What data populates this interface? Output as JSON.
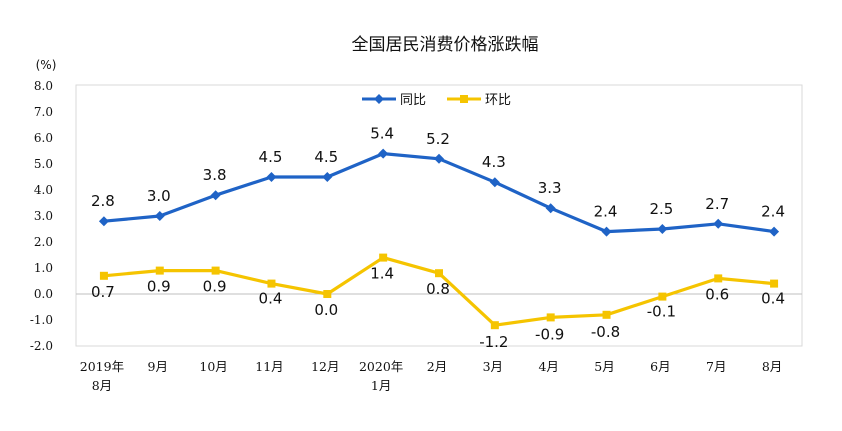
{
  "chart_data": {
    "type": "line",
    "title": "全国居民消费价格涨跌幅",
    "unit": "(%)",
    "categories": [
      [
        "2019年",
        "8月"
      ],
      [
        "9月"
      ],
      [
        "10月"
      ],
      [
        "11月"
      ],
      [
        "12月"
      ],
      [
        "2020年",
        "1月"
      ],
      [
        "2月"
      ],
      [
        "3月"
      ],
      [
        "4月"
      ],
      [
        "5月"
      ],
      [
        "6月"
      ],
      [
        "7月"
      ],
      [
        "8月"
      ]
    ],
    "y_ticks": [
      "8.0",
      "7.0",
      "6.0",
      "5.0",
      "4.0",
      "3.0",
      "2.0",
      "1.0",
      "0.0",
      "-1.0",
      "-2.0"
    ],
    "ylim": [
      -2,
      8
    ],
    "grid": false,
    "legend_position": "top-center",
    "series": [
      {
        "name": "同比",
        "color": "#1f63c6",
        "marker": "diamond",
        "values": [
          2.8,
          3.0,
          3.8,
          4.5,
          4.5,
          5.4,
          5.2,
          4.3,
          3.3,
          2.4,
          2.5,
          2.7,
          2.4
        ],
        "labels": [
          "2.8",
          "3.0",
          "3.8",
          "4.5",
          "4.5",
          "5.4",
          "5.2",
          "4.3",
          "3.3",
          "2.4",
          "2.5",
          "2.7",
          "2.4"
        ]
      },
      {
        "name": "环比",
        "color": "#f5c400",
        "marker": "square",
        "values": [
          0.7,
          0.9,
          0.9,
          0.4,
          0.0,
          1.4,
          0.8,
          -1.2,
          -0.9,
          -0.8,
          -0.1,
          0.6,
          0.4
        ],
        "labels": [
          "0.7",
          "0.9",
          "0.9",
          "0.4",
          "0.0",
          "1.4",
          "0.8",
          "-1.2",
          "-0.9",
          "-0.8",
          "-0.1",
          "0.6",
          "0.4"
        ]
      }
    ]
  }
}
